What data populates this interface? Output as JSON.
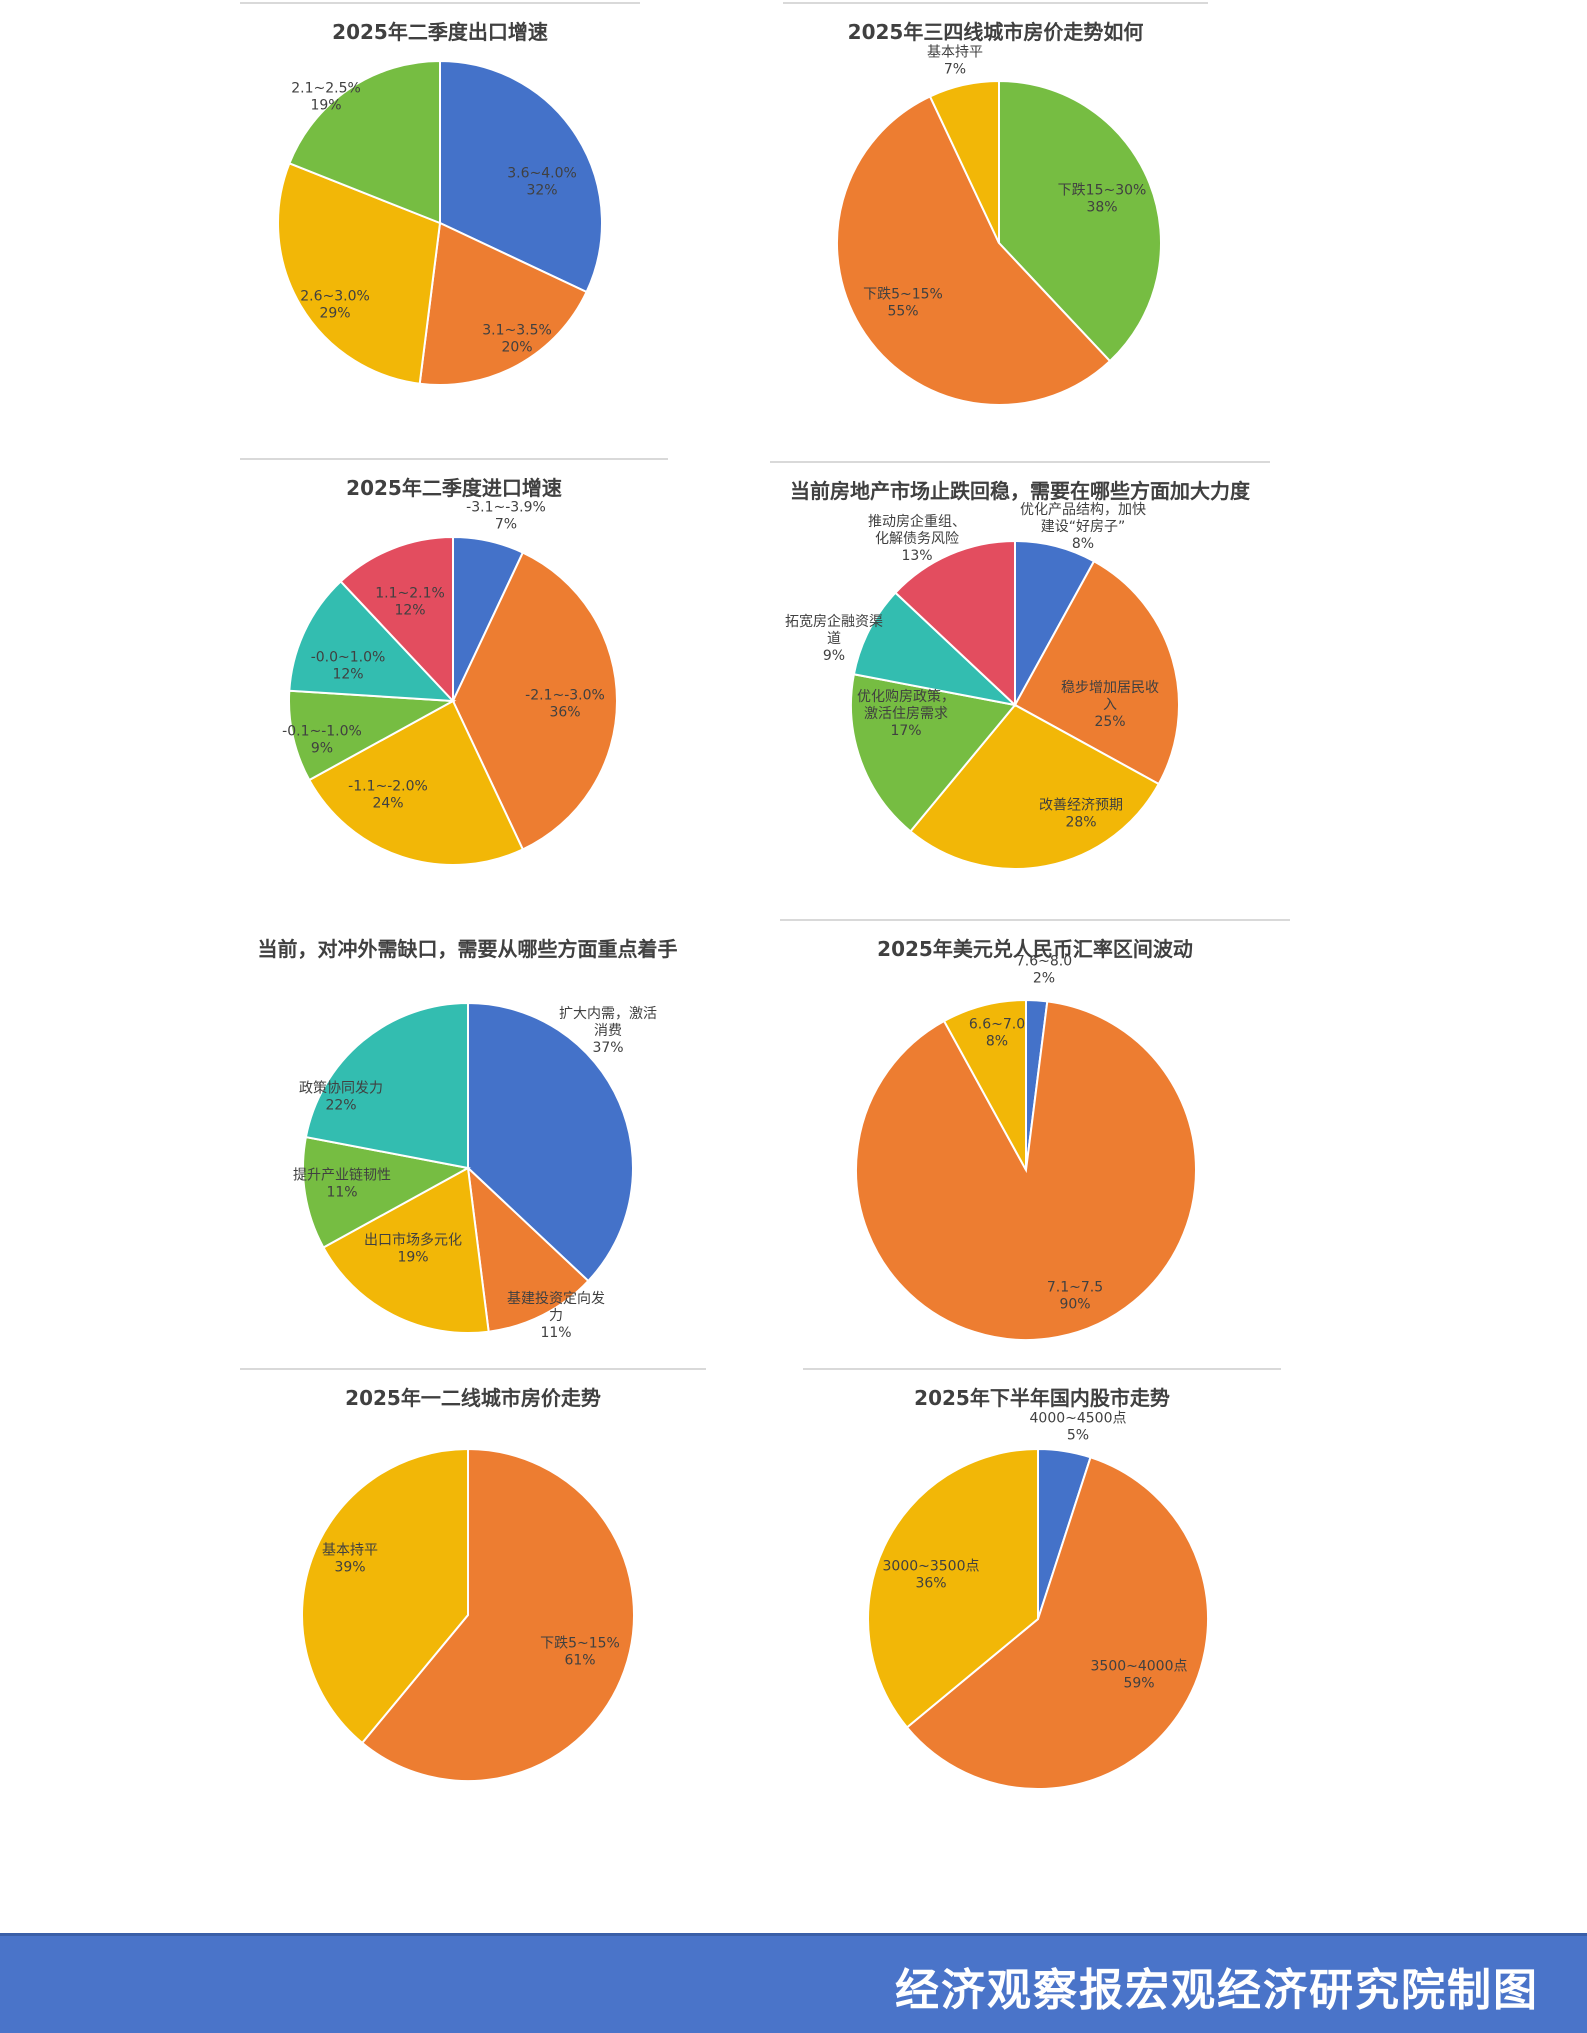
{
  "colors": {
    "blue": "#4472c9",
    "orange": "#ed7d31",
    "yellow": "#f2b707",
    "green": "#76bd42",
    "teal": "#33bdb0",
    "red": "#e34d5f"
  },
  "chart_data": [
    {
      "type": "pie",
      "title": "2025年二季度出口增速",
      "slices": [
        {
          "label": "3.6~4.0%",
          "pct": "32%",
          "value": 32,
          "color": "blue"
        },
        {
          "label": "3.1~3.5%",
          "pct": "20%",
          "value": 20,
          "color": "orange"
        },
        {
          "label": "2.6~3.0%",
          "pct": "29%",
          "value": 29,
          "color": "yellow"
        },
        {
          "label": "2.1~2.5%",
          "pct": "19%",
          "value": 19,
          "color": "green"
        }
      ]
    },
    {
      "type": "pie",
      "title": "2025年三四线城市房价走势如何",
      "slices": [
        {
          "label": "下跌15~30%",
          "pct": "38%",
          "value": 38,
          "color": "green"
        },
        {
          "label": "下跌5~15%",
          "pct": "55%",
          "value": 55,
          "color": "orange"
        },
        {
          "label": "基本持平",
          "pct": "7%",
          "value": 7,
          "color": "yellow"
        }
      ]
    },
    {
      "type": "pie",
      "title": "2025年二季度进口增速",
      "slices": [
        {
          "label": "-3.1~-3.9%",
          "pct": "7%",
          "value": 7,
          "color": "blue"
        },
        {
          "label": "-2.1~-3.0%",
          "pct": "36%",
          "value": 36,
          "color": "orange"
        },
        {
          "label": "-1.1~-2.0%",
          "pct": "24%",
          "value": 24,
          "color": "yellow"
        },
        {
          "label": "-0.1~-1.0%",
          "pct": "9%",
          "value": 9,
          "color": "green"
        },
        {
          "label": "-0.0~1.0%",
          "pct": "12%",
          "value": 12,
          "color": "teal"
        },
        {
          "label": "1.1~2.1%",
          "pct": "12%",
          "value": 12,
          "color": "red"
        }
      ]
    },
    {
      "type": "pie",
      "title": "当前房地产市场止跌回稳，需要在哪些方面加大力度",
      "slices": [
        {
          "label": "优化产品结构，加快|建设“好房子”",
          "pct": "8%",
          "value": 8,
          "color": "blue"
        },
        {
          "label": "稳步增加居民收|入",
          "pct": "25%",
          "value": 25,
          "color": "orange"
        },
        {
          "label": "改善经济预期",
          "pct": "28%",
          "value": 28,
          "color": "yellow"
        },
        {
          "label": "优化购房政策，|激活住房需求",
          "pct": "17%",
          "value": 17,
          "color": "green"
        },
        {
          "label": "拓宽房企融资渠|道",
          "pct": "9%",
          "value": 9,
          "color": "teal"
        },
        {
          "label": "推动房企重组、|化解债务风险",
          "pct": "13%",
          "value": 13,
          "color": "red"
        }
      ]
    },
    {
      "type": "pie",
      "title": "当前，对冲外需缺口，需要从哪些方面重点着手",
      "slices": [
        {
          "label": "扩大内需，激活|消费",
          "pct": "37%",
          "value": 37,
          "color": "blue"
        },
        {
          "label": "基建投资定向发|力",
          "pct": "11%",
          "value": 11,
          "color": "orange"
        },
        {
          "label": "出口市场多元化",
          "pct": "19%",
          "value": 19,
          "color": "yellow"
        },
        {
          "label": "提升产业链韧性",
          "pct": "11%",
          "value": 11,
          "color": "green"
        },
        {
          "label": "政策协同发力",
          "pct": "22%",
          "value": 22,
          "color": "teal"
        }
      ]
    },
    {
      "type": "pie",
      "title": "2025年美元兑人民币汇率区间波动",
      "slices": [
        {
          "label": "7.6~8.0",
          "pct": "2%",
          "value": 2,
          "color": "blue"
        },
        {
          "label": "7.1~7.5",
          "pct": "90%",
          "value": 90,
          "color": "orange"
        },
        {
          "label": "6.6~7.0",
          "pct": "8%",
          "value": 8,
          "color": "yellow"
        }
      ]
    },
    {
      "type": "pie",
      "title": "2025年一二线城市房价走势",
      "slices": [
        {
          "label": "下跌5~15%",
          "pct": "61%",
          "value": 61,
          "color": "orange"
        },
        {
          "label": "基本持平",
          "pct": "39%",
          "value": 39,
          "color": "yellow"
        }
      ]
    },
    {
      "type": "pie",
      "title": "2025年下半年国内股市走势",
      "slices": [
        {
          "label": "4000~4500点",
          "pct": "5%",
          "value": 5,
          "color": "blue"
        },
        {
          "label": "3500~4000点",
          "pct": "59%",
          "value": 59,
          "color": "orange"
        },
        {
          "label": "3000~3500点",
          "pct": "36%",
          "value": 36,
          "color": "yellow"
        }
      ]
    }
  ],
  "footer": {
    "text": "经济观察报宏观经济研究院制图"
  }
}
